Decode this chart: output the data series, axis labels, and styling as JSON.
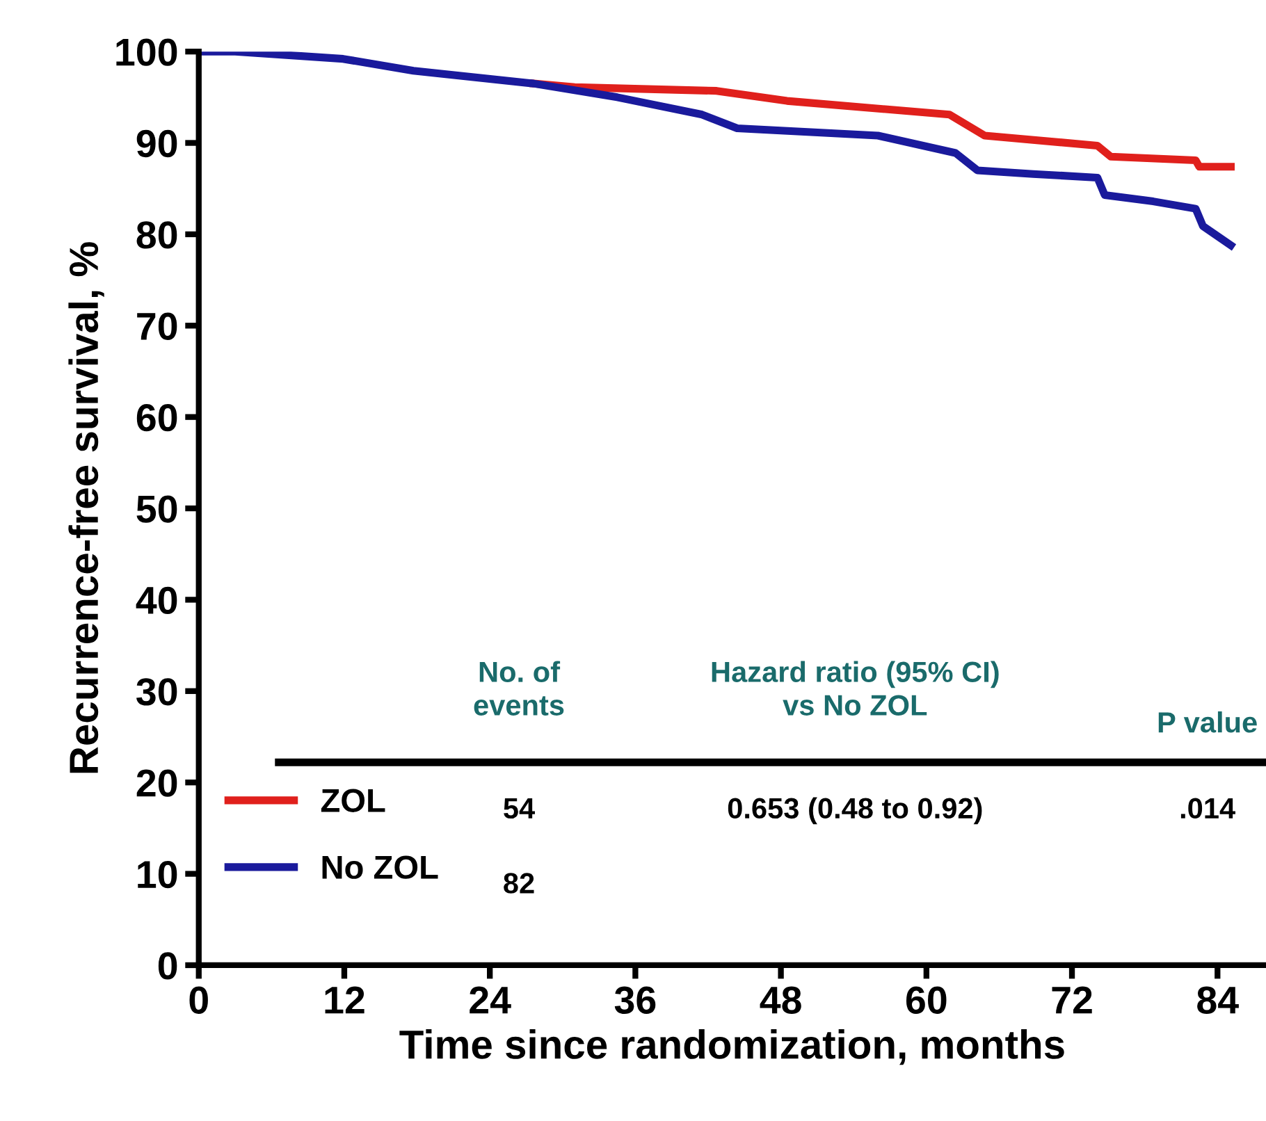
{
  "chart_data": {
    "type": "line",
    "xlabel": "Time since randomization, months",
    "ylabel": "Recurrence-free survival, %",
    "xlim": [
      0,
      88
    ],
    "xticks": [
      0,
      12,
      24,
      36,
      48,
      60,
      72,
      84
    ],
    "ylim": [
      0,
      100
    ],
    "yticks": [
      0,
      10,
      20,
      30,
      40,
      50,
      60,
      70,
      80,
      90,
      100
    ],
    "grid": false,
    "ref_lines": [
      {
        "axis": "y",
        "value": 22.2,
        "color": "#000000"
      }
    ],
    "legend": "bottom left",
    "marker": "none",
    "line_style": "solid",
    "series": [
      {
        "name": "ZOL",
        "color": "#e0201c",
        "x": [
          27.6,
          31,
          42.7,
          48.5,
          61.9,
          64.8,
          74.1,
          75.2,
          82.2,
          82.5,
          85.1
        ],
        "values": [
          96.5,
          96.1,
          95.7,
          94.6,
          93.1,
          90.8,
          89.7,
          88.5,
          88.1,
          87.4,
          87.4
        ]
      },
      {
        "name": "No ZOL",
        "color": "#1a1a9c",
        "x": [
          0,
          3,
          11.9,
          17.7,
          27.6,
          34.5,
          41.5,
          44.4,
          56,
          62.4,
          64.2,
          68.8,
          74.1,
          74.7,
          78.7,
          82.2,
          82.8,
          85.1
        ],
        "values": [
          100,
          100,
          99.2,
          97.9,
          96.5,
          95,
          93.1,
          91.6,
          90.8,
          88.9,
          87,
          86.6,
          86.2,
          84.3,
          83.6,
          82.8,
          80.9,
          78.8
        ]
      }
    ],
    "annotations": [
      "No. of\nevents",
      "Hazard ratio (95% CI)\nvs No ZOL",
      "P value",
      "54",
      "0.653 (0.48 to 0.92)",
      ".014",
      "82"
    ]
  }
}
